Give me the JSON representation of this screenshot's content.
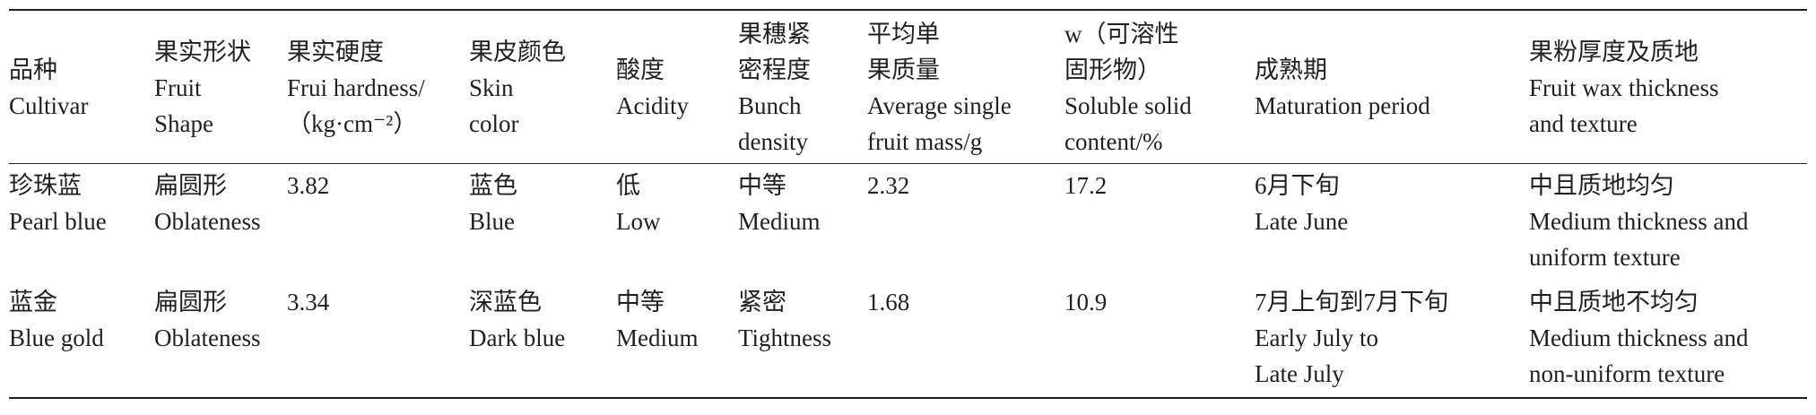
{
  "table": {
    "header": [
      [
        "品种",
        "Cultivar"
      ],
      [
        "果实形状",
        "Fruit",
        "Shape"
      ],
      [
        "果实硬度",
        "Frui hardness/",
        "（kg·cm⁻²）"
      ],
      [
        "果皮颜色",
        "Skin",
        "color"
      ],
      [
        "酸度",
        "Acidity"
      ],
      [
        "果穗紧",
        "密程度",
        "Bunch",
        "density"
      ],
      [
        "平均单",
        "果质量",
        "Average single",
        "fruit mass/g"
      ],
      [
        "w（可溶性",
        "固形物）",
        "Soluble solid",
        "content/%"
      ],
      [
        "成熟期",
        "Maturation period"
      ],
      [
        "果粉厚度及质地",
        "Fruit wax thickness",
        "and texture"
      ]
    ],
    "rows": [
      [
        [
          "珍珠蓝",
          "Pearl blue"
        ],
        [
          "扁圆形",
          "Oblateness"
        ],
        [
          "3.82"
        ],
        [
          "蓝色",
          "Blue"
        ],
        [
          "低",
          "Low"
        ],
        [
          "中等",
          "Medium"
        ],
        [
          "2.32"
        ],
        [
          "17.2"
        ],
        [
          "6月下旬",
          "Late June"
        ],
        [
          "中且质地均匀",
          "Medium thickness and",
          "uniform texture"
        ]
      ],
      [
        [
          "蓝金",
          "Blue gold"
        ],
        [
          "扁圆形",
          "Oblateness"
        ],
        [
          "3.34"
        ],
        [
          "深蓝色",
          "Dark blue"
        ],
        [
          "中等",
          "Medium"
        ],
        [
          "紧密",
          "Tightness"
        ],
        [
          "1.68"
        ],
        [
          "10.9"
        ],
        [
          "7月上旬到7月下旬",
          "Early July to",
          "Late July"
        ],
        [
          "中且质地不均匀",
          "Medium thickness and",
          "non-uniform texture"
        ]
      ]
    ]
  }
}
